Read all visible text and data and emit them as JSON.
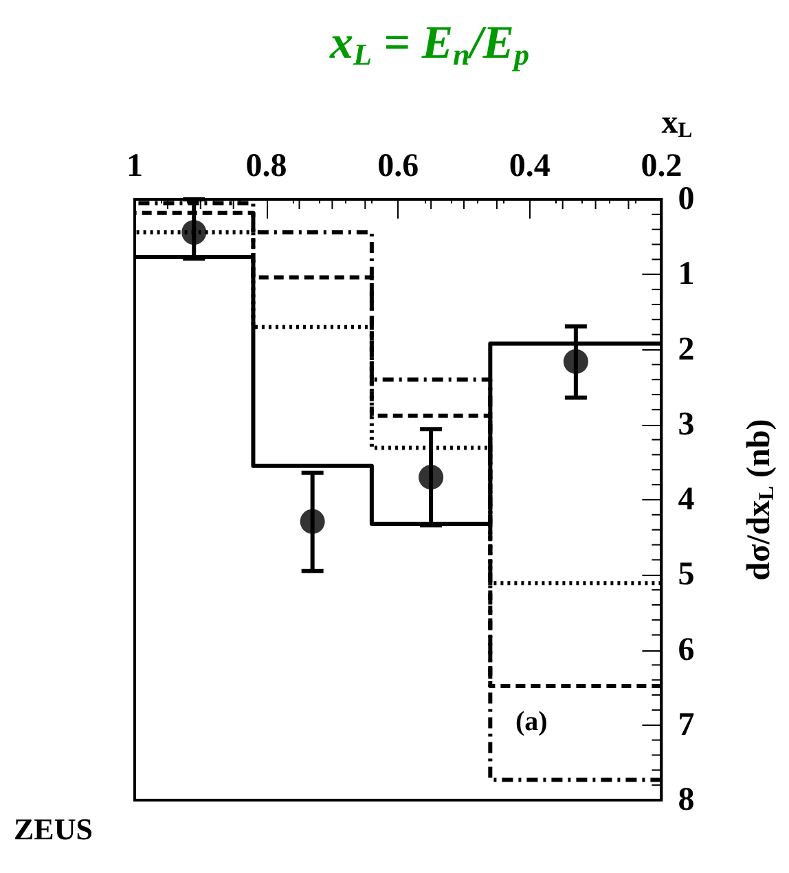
{
  "chart_data": {
    "type": "step",
    "title": "x$_{L}$ = E$_{n}$/E$_{p}$",
    "xlabel": "x$_{L}$",
    "ylabel": "dσ/dx$_{L}$ (nb)",
    "annotations": [
      "ZEUS",
      "(a)"
    ],
    "xlim": [
      1,
      0.2
    ],
    "xticks": [
      0.2,
      0.4,
      0.6,
      0.8,
      1
    ],
    "ylim": [
      8,
      0
    ],
    "yticks": [
      0,
      1,
      2,
      3,
      4,
      5,
      6,
      7,
      8
    ],
    "grid": false,
    "series": [
      {
        "color": "#000000",
        "line_style": "solid",
        "x": [
          0.2,
          0.46,
          0.64,
          0.82,
          1
        ],
        "values": [
          1.92,
          4.32,
          3.55,
          0.77,
          0.77
        ]
      },
      {
        "color": "#000000",
        "line_style": "dashed",
        "x": [
          0.2,
          0.46,
          0.64,
          0.82,
          1
        ],
        "values": [
          6.48,
          2.88,
          1.04,
          0.18,
          0.18
        ]
      },
      {
        "color": "#000000",
        "line_style": "dotted",
        "x": [
          0.2,
          0.46,
          0.64,
          0.82,
          1
        ],
        "values": [
          5.11,
          3.31,
          1.7,
          0.44,
          0.44
        ]
      },
      {
        "color": "#000000",
        "line_style": "dashdot",
        "x": [
          0.2,
          0.46,
          0.64,
          0.82,
          1
        ],
        "values": [
          7.73,
          2.4,
          0.44,
          0.05,
          0.05
        ]
      },
      {
        "type": "scatter",
        "color": "#000000",
        "marker": "circle",
        "x": [
          0.33,
          0.55,
          0.73,
          0.91
        ],
        "values": [
          2.16,
          3.7,
          4.29,
          0.44
        ],
        "errors": [
          [
            1.69,
            2.64
          ],
          [
            3.06,
            4.34
          ],
          [
            3.64,
            4.95
          ],
          [
            0.0,
            0.79
          ]
        ]
      }
    ]
  }
}
